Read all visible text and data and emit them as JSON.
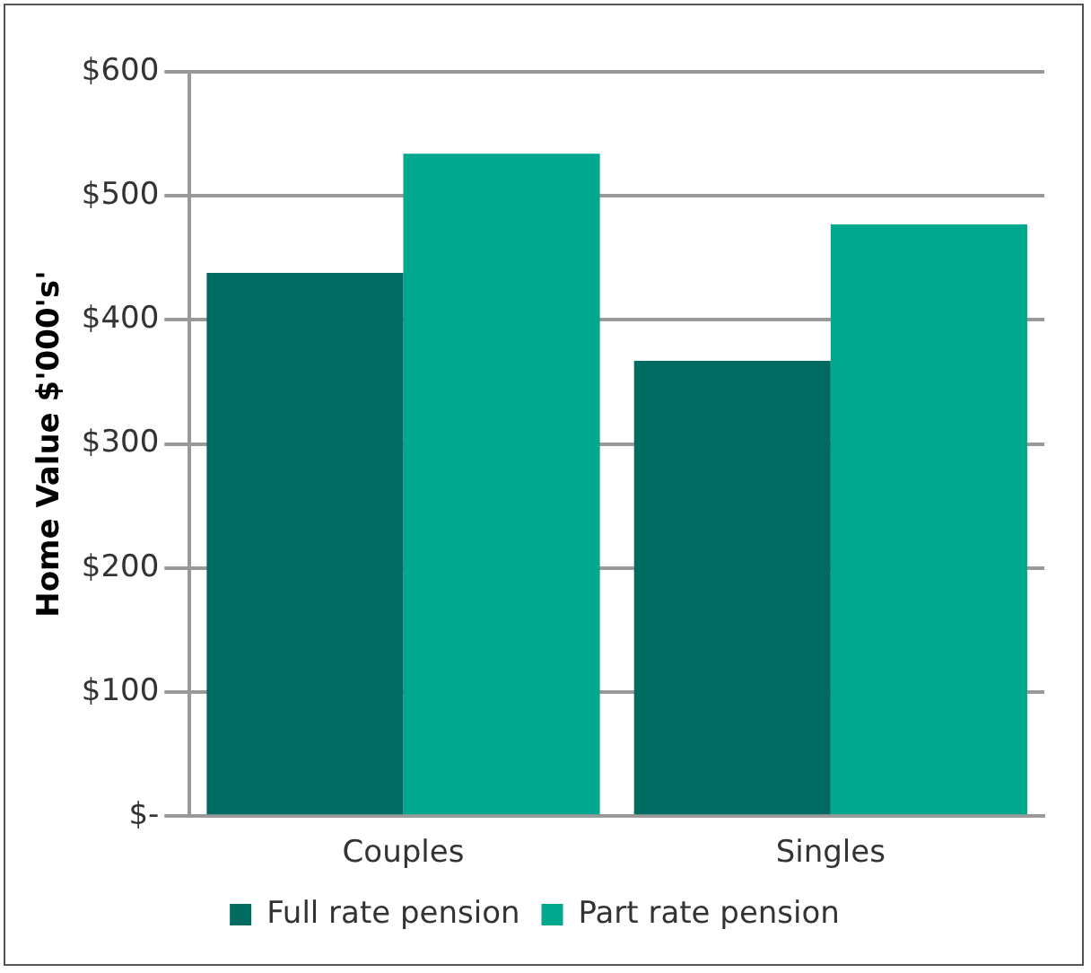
{
  "chart_data": {
    "type": "bar",
    "ylabel": "Home Value $'000's'",
    "categories": [
      "Couples",
      "Singles"
    ],
    "series": [
      {
        "name": "Full rate pension",
        "color": "#006b60",
        "values": [
          438,
          367
        ]
      },
      {
        "name": "Part rate pension",
        "color": "#00a88f",
        "values": [
          534,
          477
        ]
      }
    ],
    "ylim": [
      0,
      600
    ],
    "yticks": [
      {
        "value": 0,
        "label": "$-"
      },
      {
        "value": 100,
        "label": "$100"
      },
      {
        "value": 200,
        "label": "$200"
      },
      {
        "value": 300,
        "label": "$300"
      },
      {
        "value": 400,
        "label": "$400"
      },
      {
        "value": 500,
        "label": "$500"
      },
      {
        "value": 600,
        "label": "$600"
      }
    ],
    "grid": "y",
    "legend": "bottom"
  }
}
